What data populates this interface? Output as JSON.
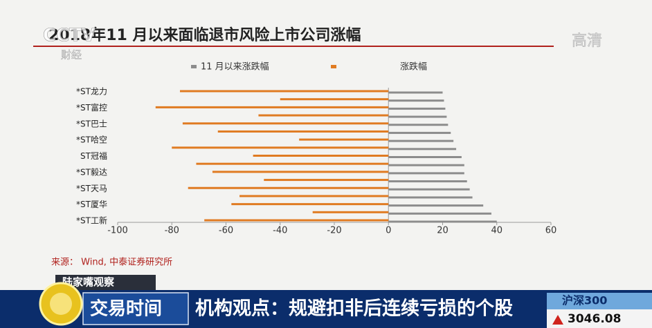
{
  "chart_data": {
    "type": "bar",
    "orientation": "horizontal",
    "title": "2018年11 月以来面临退市风险上市公司涨幅",
    "categories": [
      "*ST龙力",
      null,
      "*ST富控",
      null,
      "*ST巴士",
      null,
      "*ST哈空",
      null,
      "ST冠福",
      null,
      "*ST毅达",
      null,
      "*ST天马",
      null,
      "*ST厦华",
      null,
      "*ST工新"
    ],
    "series": [
      {
        "name": "11 月以来涨跌幅",
        "color": "#8c8c8c",
        "values": [
          20,
          20.5,
          21,
          21.5,
          22,
          23,
          24,
          25,
          27,
          28,
          28,
          29,
          30,
          31,
          35,
          38,
          40
        ]
      },
      {
        "name": "涨跌幅",
        "color": "#e07b22",
        "values": [
          -77,
          -40,
          -86,
          -48,
          -76,
          -63,
          -33,
          -80,
          -50,
          -71,
          -65,
          -46,
          -74,
          -55,
          -58,
          -28,
          -68
        ]
      }
    ],
    "xlim": [
      -100,
      60
    ],
    "xticks": [
      -100,
      -80,
      -60,
      -40,
      -20,
      0,
      20,
      40,
      60
    ],
    "legend": "top",
    "source": "来源：  Wind, 中泰证券研究所"
  },
  "overlay": {
    "channel": "CCTV",
    "channel_sub": "财经",
    "hd": "高清",
    "program": "陆家嘴观察",
    "segment": "交易时间",
    "headline": "机构观点：规避扣非后连续亏损的个股",
    "index_name": "沪深300",
    "index_value": "3046.08"
  }
}
